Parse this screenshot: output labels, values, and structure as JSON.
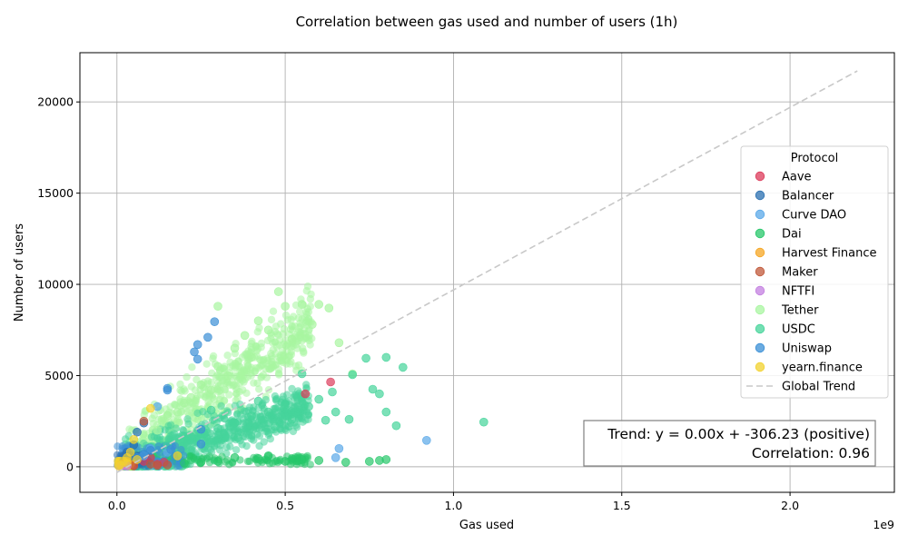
{
  "chart_data": {
    "type": "scatter",
    "title": "Correlation between gas used and number of users (1h)",
    "xlabel": "Gas used",
    "ylabel": "Number of users",
    "x_offset_label": "1e9",
    "xlim": [
      -0.11,
      2.31
    ],
    "ylim": [
      -1400,
      22700
    ],
    "x_ticks": [
      0.0,
      0.5,
      1.0,
      1.5,
      2.0
    ],
    "x_tick_labels": [
      "0.0",
      "0.5",
      "1.0",
      "1.5",
      "2.0"
    ],
    "y_ticks": [
      0,
      5000,
      10000,
      15000,
      20000
    ],
    "y_tick_labels": [
      "0",
      "5000",
      "10000",
      "15000",
      "20000"
    ],
    "grid": true,
    "legend_title": "Protocol",
    "legend_position": "center-right",
    "series": [
      {
        "name": "Aave",
        "color": "#dc3a5a",
        "points": [
          [
            0.56,
            4000
          ],
          [
            0.635,
            4650
          ],
          [
            0.1,
            500
          ],
          [
            0.12,
            150
          ],
          [
            0.08,
            300
          ],
          [
            0.05,
            100
          ],
          [
            0.14,
            250
          ]
        ]
      },
      {
        "name": "Balancer",
        "color": "#2a6fb0",
        "points": [
          [
            0.08,
            2400
          ],
          [
            0.06,
            1900
          ],
          [
            0.05,
            1200
          ],
          [
            0.03,
            800
          ],
          [
            0.1,
            900
          ],
          [
            0.02,
            300
          ],
          [
            0.07,
            600
          ],
          [
            0.04,
            500
          ]
        ]
      },
      {
        "name": "Curve DAO",
        "color": "#5aa8e8",
        "points": [
          [
            0.12,
            3300
          ],
          [
            0.65,
            500
          ],
          [
            0.66,
            1000
          ],
          [
            0.92,
            1450
          ],
          [
            0.1,
            1000
          ],
          [
            0.08,
            600
          ],
          [
            0.15,
            800
          ]
        ]
      },
      {
        "name": "Dai",
        "color": "#27c76a",
        "points": [
          [
            0.5,
            300
          ],
          [
            0.55,
            400
          ],
          [
            0.6,
            350
          ],
          [
            0.68,
            250
          ],
          [
            0.75,
            300
          ],
          [
            0.78,
            350
          ],
          [
            0.8,
            400
          ],
          [
            0.35,
            500
          ],
          [
            0.42,
            450
          ],
          [
            0.3,
            300
          ],
          [
            0.25,
            250
          ],
          [
            0.2,
            200
          ],
          [
            0.45,
            600
          ]
        ]
      },
      {
        "name": "Harvest Finance",
        "color": "#f5a623",
        "points": [
          [
            0.01,
            100
          ],
          [
            0.02,
            200
          ],
          [
            0.03,
            300
          ],
          [
            0.015,
            50
          ],
          [
            0.04,
            150
          ]
        ]
      },
      {
        "name": "Maker",
        "color": "#c0583a",
        "points": [
          [
            0.08,
            2500
          ],
          [
            0.15,
            100
          ],
          [
            0.1,
            150
          ],
          [
            0.12,
            80
          ],
          [
            0.05,
            50
          ]
        ]
      },
      {
        "name": "NFTFI",
        "color": "#c37fe0",
        "points": [
          [
            0.01,
            30
          ],
          [
            0.02,
            60
          ],
          [
            0.03,
            40
          ]
        ]
      },
      {
        "name": "Tether",
        "color": "#a8f5a0",
        "points": [
          [
            0.48,
            9600
          ],
          [
            0.55,
            8900
          ],
          [
            0.6,
            8900
          ],
          [
            0.5,
            8800
          ],
          [
            0.3,
            8800
          ],
          [
            0.63,
            8700
          ],
          [
            0.42,
            8000
          ],
          [
            0.58,
            7800
          ],
          [
            0.66,
            6800
          ],
          [
            0.7,
            5100
          ],
          [
            0.38,
            7200
          ],
          [
            0.35,
            6500
          ],
          [
            0.3,
            5500
          ],
          [
            0.25,
            4500
          ],
          [
            0.2,
            3500
          ],
          [
            0.15,
            2800
          ],
          [
            0.45,
            7500
          ],
          [
            0.52,
            7000
          ],
          [
            0.4,
            6000
          ],
          [
            0.33,
            5000
          ],
          [
            0.28,
            4200
          ],
          [
            0.22,
            3800
          ],
          [
            0.18,
            3000
          ],
          [
            0.12,
            2000
          ]
        ]
      },
      {
        "name": "USDC",
        "color": "#45d49a",
        "points": [
          [
            1.09,
            2450
          ],
          [
            0.8,
            6000
          ],
          [
            0.85,
            5450
          ],
          [
            0.74,
            5950
          ],
          [
            0.7,
            5050
          ],
          [
            0.76,
            4250
          ],
          [
            0.78,
            4000
          ],
          [
            0.8,
            3000
          ],
          [
            0.83,
            2250
          ],
          [
            0.69,
            2600
          ],
          [
            0.6,
            3700
          ],
          [
            0.65,
            3000
          ],
          [
            0.55,
            5100
          ],
          [
            0.62,
            2550
          ],
          [
            0.5,
            3400
          ],
          [
            0.45,
            3000
          ],
          [
            0.4,
            2800
          ],
          [
            0.35,
            2400
          ],
          [
            0.3,
            2100
          ],
          [
            0.25,
            1800
          ],
          [
            0.2,
            1500
          ],
          [
            0.15,
            1200
          ],
          [
            0.28,
            3100
          ],
          [
            0.42,
            3600
          ],
          [
            0.52,
            2600
          ],
          [
            0.36,
            1600
          ],
          [
            0.47,
            2200
          ],
          [
            0.57,
            3300
          ],
          [
            0.64,
            4100
          ]
        ]
      },
      {
        "name": "Uniswap",
        "color": "#3a8fd6",
        "points": [
          [
            0.29,
            7950
          ],
          [
            0.27,
            7100
          ],
          [
            0.23,
            6300
          ],
          [
            0.24,
            6700
          ],
          [
            0.24,
            5900
          ],
          [
            0.15,
            4300
          ],
          [
            0.15,
            4200
          ],
          [
            0.25,
            2050
          ],
          [
            0.25,
            1250
          ],
          [
            0.16,
            950
          ],
          [
            0.1,
            900
          ],
          [
            0.08,
            700
          ],
          [
            0.06,
            500
          ]
        ]
      },
      {
        "name": "yearn.finance",
        "color": "#f2d22e",
        "points": [
          [
            0.1,
            3200
          ],
          [
            0.05,
            1500
          ],
          [
            0.04,
            800
          ],
          [
            0.03,
            500
          ],
          [
            0.02,
            300
          ],
          [
            0.01,
            100
          ],
          [
            0.005,
            50
          ],
          [
            0.06,
            400
          ],
          [
            0.18,
            600
          ],
          [
            0.03,
            200
          ]
        ]
      }
    ],
    "trend_line": {
      "name": "Global Trend",
      "color": "#c8c8c8",
      "points": [
        [
          0.0,
          -306.23
        ],
        [
          2.2,
          21700
        ]
      ]
    },
    "annotation": {
      "line1": "Trend: y = 0.00x + -306.23 (positive)",
      "line2": "Correlation: 0.96"
    }
  }
}
